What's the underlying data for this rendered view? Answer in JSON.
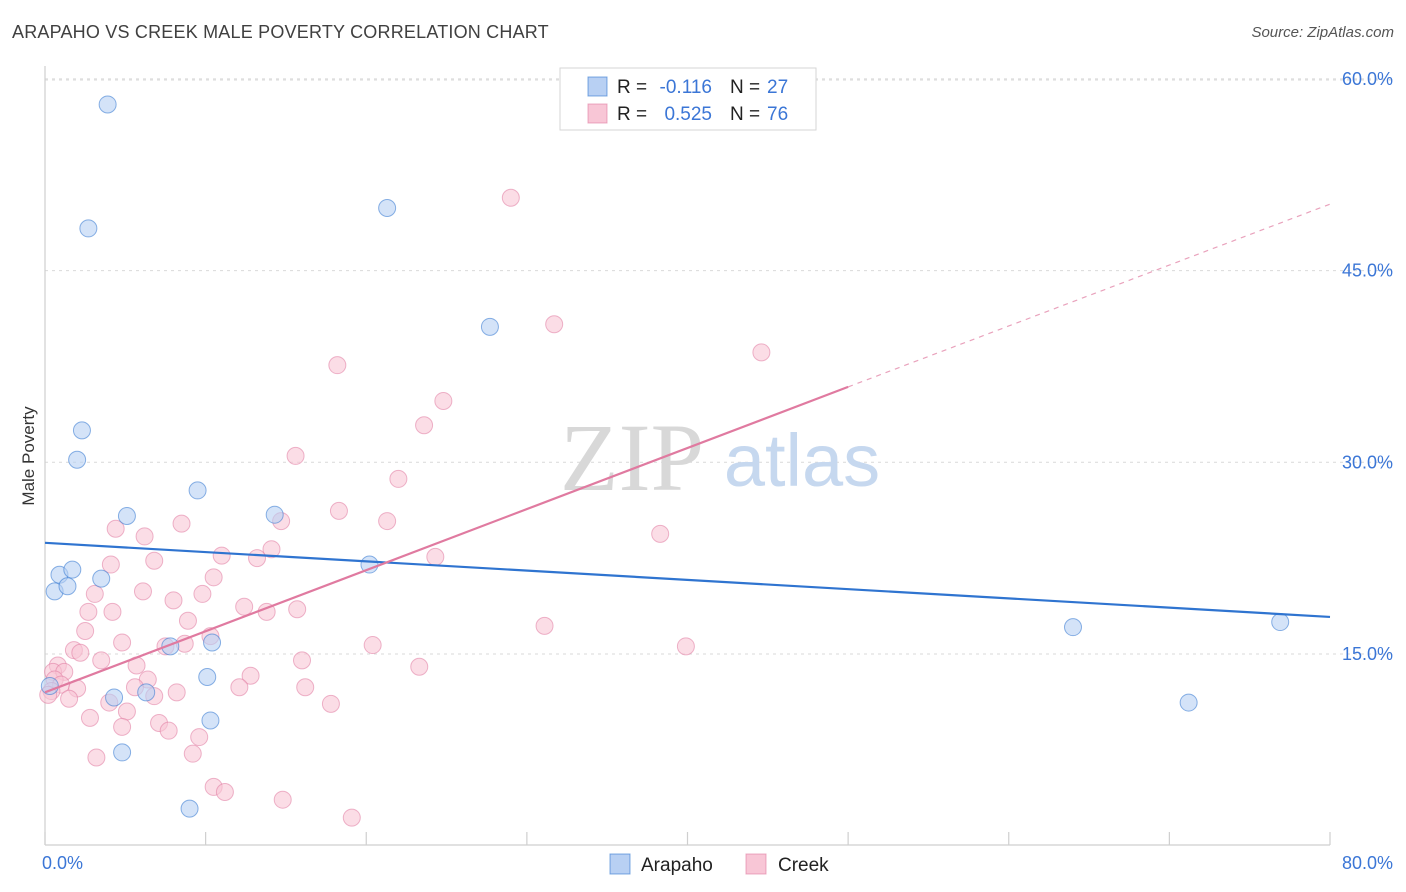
{
  "title": "ARAPAHO VS CREEK MALE POVERTY CORRELATION CHART",
  "source": "Source: ZipAtlas.com",
  "watermark": {
    "zip": "ZIP",
    "atlas": "atlas"
  },
  "colors": {
    "arapaho": "#2f74d0",
    "arapaho_fill": "#b8d0f3",
    "creek": "#e07aa0",
    "creek_fill": "#f8c6d6",
    "axis_label": "#3b76d6",
    "grid": "#d9d9d9"
  },
  "legend": {
    "rows": [
      {
        "r_label": "R =",
        "r_value": "-0.116",
        "n_label": "N =",
        "n_value": "27",
        "series": "arapaho"
      },
      {
        "r_label": "R =",
        "r_value": "0.525",
        "n_label": "N =",
        "n_value": "76",
        "series": "creek"
      }
    ]
  },
  "chart_data": {
    "type": "scatter",
    "xlabel": "",
    "ylabel": "Male Poverty",
    "xlim": [
      0,
      80
    ],
    "ylim": [
      0,
      60
    ],
    "x_tick_labels": [
      "0.0%",
      "80.0%"
    ],
    "y_tick_labels": [
      "15.0%",
      "30.0%",
      "45.0%",
      "60.0%"
    ],
    "y_ticks": [
      15,
      30,
      45,
      60
    ],
    "grid": true,
    "legend_position": "bottom-center",
    "series": [
      {
        "name": "Arapaho",
        "key": "arapaho",
        "trend": {
          "x": [
            0,
            80
          ],
          "y": [
            23.7,
            17.9
          ],
          "dashed_from": null
        },
        "points": [
          [
            3.9,
            58.0
          ],
          [
            2.7,
            48.3
          ],
          [
            21.3,
            49.9
          ],
          [
            27.7,
            40.6
          ],
          [
            2.3,
            32.5
          ],
          [
            2.0,
            30.2
          ],
          [
            9.5,
            27.8
          ],
          [
            5.1,
            25.8
          ],
          [
            14.3,
            25.9
          ],
          [
            20.2,
            22.0
          ],
          [
            0.9,
            21.2
          ],
          [
            1.7,
            21.6
          ],
          [
            0.6,
            19.9
          ],
          [
            1.4,
            20.3
          ],
          [
            3.5,
            20.9
          ],
          [
            7.8,
            15.6
          ],
          [
            10.4,
            15.9
          ],
          [
            10.1,
            13.2
          ],
          [
            0.3,
            12.5
          ],
          [
            4.3,
            11.6
          ],
          [
            6.3,
            12.0
          ],
          [
            10.3,
            9.8
          ],
          [
            4.8,
            7.3
          ],
          [
            9.0,
            2.9
          ],
          [
            64.0,
            17.1
          ],
          [
            76.9,
            17.5
          ],
          [
            71.2,
            11.2
          ]
        ]
      },
      {
        "name": "Creek",
        "key": "creek",
        "trend": {
          "x": [
            0,
            50
          ],
          "y": [
            12.0,
            35.9
          ],
          "dashed_from": 50,
          "dashed_to": [
            80,
            50.2
          ]
        },
        "points": [
          [
            29.0,
            50.7
          ],
          [
            31.7,
            40.8
          ],
          [
            44.6,
            38.6
          ],
          [
            18.2,
            37.6
          ],
          [
            24.8,
            34.8
          ],
          [
            23.6,
            32.9
          ],
          [
            15.6,
            30.5
          ],
          [
            22.0,
            28.7
          ],
          [
            4.4,
            24.8
          ],
          [
            6.2,
            24.2
          ],
          [
            8.5,
            25.2
          ],
          [
            18.3,
            26.2
          ],
          [
            14.7,
            25.4
          ],
          [
            21.3,
            25.4
          ],
          [
            14.1,
            23.2
          ],
          [
            38.3,
            24.4
          ],
          [
            11.0,
            22.7
          ],
          [
            13.2,
            22.5
          ],
          [
            6.8,
            22.3
          ],
          [
            24.3,
            22.6
          ],
          [
            4.1,
            22.0
          ],
          [
            10.5,
            21.0
          ],
          [
            6.1,
            19.9
          ],
          [
            3.1,
            19.7
          ],
          [
            8.0,
            19.2
          ],
          [
            9.8,
            19.7
          ],
          [
            12.4,
            18.7
          ],
          [
            13.8,
            18.3
          ],
          [
            15.7,
            18.5
          ],
          [
            2.7,
            18.3
          ],
          [
            4.2,
            18.3
          ],
          [
            8.9,
            17.6
          ],
          [
            31.1,
            17.2
          ],
          [
            2.5,
            16.8
          ],
          [
            10.3,
            16.4
          ],
          [
            4.8,
            15.9
          ],
          [
            20.4,
            15.7
          ],
          [
            39.9,
            15.6
          ],
          [
            1.8,
            15.3
          ],
          [
            7.5,
            15.6
          ],
          [
            8.7,
            15.8
          ],
          [
            2.2,
            15.1
          ],
          [
            3.5,
            14.5
          ],
          [
            16.0,
            14.5
          ],
          [
            23.3,
            14.0
          ],
          [
            0.8,
            14.1
          ],
          [
            5.7,
            14.1
          ],
          [
            0.5,
            13.6
          ],
          [
            1.2,
            13.6
          ],
          [
            12.8,
            13.3
          ],
          [
            0.6,
            13.0
          ],
          [
            6.4,
            13.0
          ],
          [
            1.0,
            12.6
          ],
          [
            2.0,
            12.3
          ],
          [
            8.2,
            12.0
          ],
          [
            12.1,
            12.4
          ],
          [
            16.2,
            12.4
          ],
          [
            0.4,
            12.1
          ],
          [
            5.6,
            12.4
          ],
          [
            4.0,
            11.2
          ],
          [
            1.5,
            11.5
          ],
          [
            6.8,
            11.7
          ],
          [
            17.8,
            11.1
          ],
          [
            5.1,
            10.5
          ],
          [
            2.8,
            10.0
          ],
          [
            7.1,
            9.6
          ],
          [
            4.8,
            9.3
          ],
          [
            7.7,
            9.0
          ],
          [
            9.6,
            8.5
          ],
          [
            9.2,
            7.2
          ],
          [
            3.2,
            6.9
          ],
          [
            10.5,
            4.6
          ],
          [
            11.2,
            4.2
          ],
          [
            14.8,
            3.6
          ],
          [
            19.1,
            2.2
          ],
          [
            0.2,
            11.8
          ]
        ]
      }
    ]
  }
}
